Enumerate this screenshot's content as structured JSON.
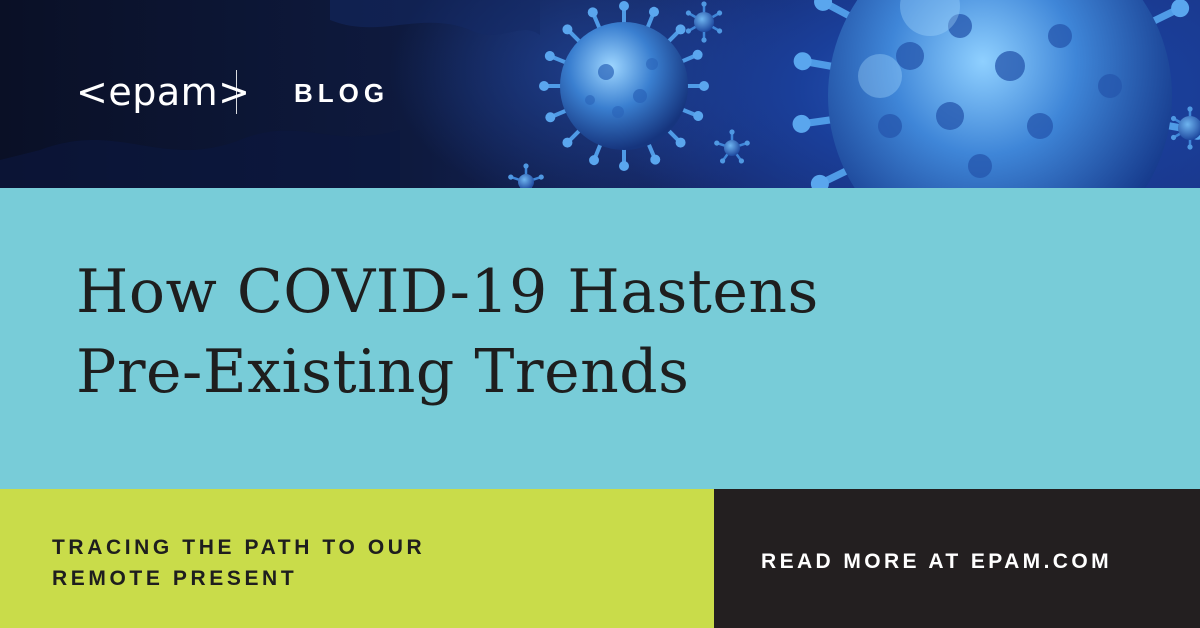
{
  "header": {
    "logo_text": "<epam>",
    "section_label": "BLOG"
  },
  "headline": {
    "line1": "How COVID-19 Hastens",
    "line2": "Pre-Existing Trends"
  },
  "subtitle": {
    "line1": "TRACING THE PATH TO OUR",
    "line2": "REMOTE PRESENT"
  },
  "cta": {
    "label": "READ MORE AT EPAM.COM"
  },
  "colors": {
    "hero_background": "#0e1a3f",
    "virus_blue": "#3f86d8",
    "headline_band": "#78ccd8",
    "subtitle_band": "#c9dc4a",
    "cta_band": "#231f20",
    "dark_text": "#1e1e1e",
    "light_text": "#ffffff"
  },
  "hero_image": {
    "icon": "coronavirus-icon"
  }
}
